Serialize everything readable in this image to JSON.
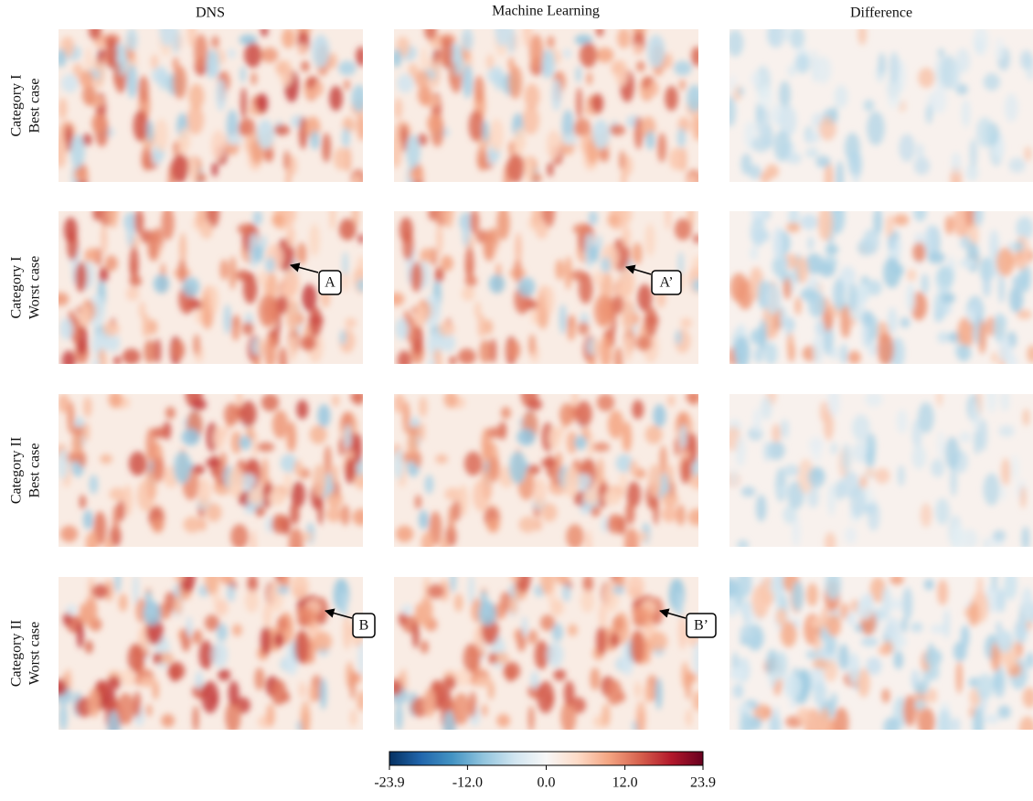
{
  "chart_data": {
    "type": "field-grid",
    "columns": [
      "DNS",
      "Machine Learning",
      "Difference"
    ],
    "rows": [
      [
        "Category I",
        "Best case"
      ],
      [
        "Category I",
        "Worst case"
      ],
      [
        "Category II",
        "Best case"
      ],
      [
        "Category II",
        "Worst case"
      ]
    ],
    "annotations": [
      "A",
      "A’",
      "B",
      "B’"
    ],
    "colorbar": {
      "lim": [
        -23.9,
        23.9
      ],
      "ticks": [
        -23.9,
        {
          "value": -12,
          "label": "-12.0"
        },
        {
          "value": 0,
          "label": "0.0"
        },
        {
          "value": 12,
          "label": "12.0"
        },
        23.9
      ],
      "colors": [
        "#053061",
        "#2166ac",
        "#4393c3",
        "#92c5de",
        "#d1e5f0",
        "#f7f7f7",
        "#fddbc7",
        "#f4a582",
        "#d6604d",
        "#b2182b",
        "#67001f"
      ]
    }
  }
}
